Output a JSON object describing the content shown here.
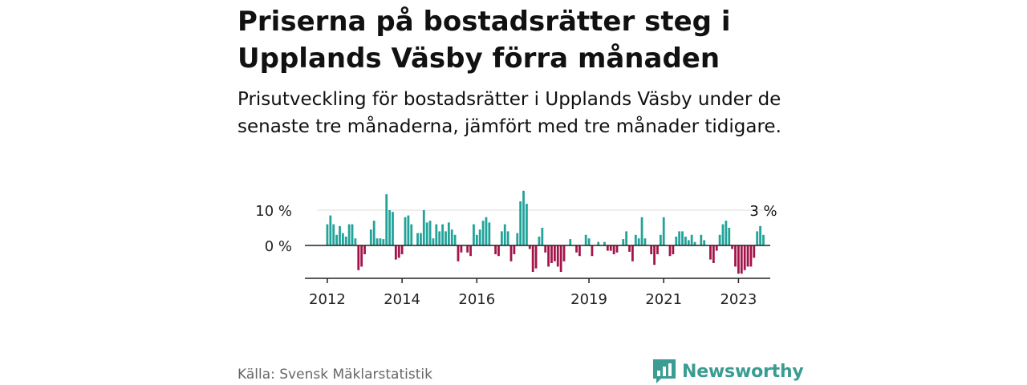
{
  "title": "Priserna på bostadsrätter steg i Upplands Väsby förra månaden",
  "subtitle": "Prisutveckling för bostadsrätter i Upplands Väsby under de senaste tre månaderna, jämfört med tre månader tidigare.",
  "source": "Källa: Svensk Mäklarstatistik",
  "brand": {
    "name": "Newsworthy",
    "color": "#3a9c92"
  },
  "colors": {
    "positive": "#22a39a",
    "negative": "#a3154a"
  },
  "chart_data": {
    "type": "bar",
    "title": "",
    "xlabel": "",
    "ylabel": "",
    "x_start": 2012.0,
    "x_step": 0.0833333,
    "x_range": [
      2011.4,
      2023.85
    ],
    "ylim": [
      -9,
      16
    ],
    "yticks": [
      0,
      10
    ],
    "ytick_labels": [
      "0 %",
      "10 %"
    ],
    "xticks": [
      2012,
      2014,
      2016,
      2019,
      2021,
      2023
    ],
    "xtick_labels": [
      "2012",
      "2014",
      "2016",
      "2019",
      "2021",
      "2023"
    ],
    "last_value_label": "3 %",
    "values": [
      6,
      8.5,
      6,
      3,
      5.5,
      3.5,
      2.5,
      6,
      6,
      2,
      -7,
      -6,
      -2.5,
      0,
      4.5,
      7,
      2,
      2,
      1.8,
      14.5,
      10,
      9.5,
      -4,
      -3.5,
      -2.5,
      8,
      8.5,
      6,
      0,
      3.5,
      3.5,
      10,
      6.5,
      7,
      2,
      6,
      4,
      6,
      4,
      6.5,
      4.5,
      3,
      -4.5,
      -2,
      0,
      -2,
      -3,
      6,
      3,
      4.5,
      7,
      8,
      6.5,
      0,
      -2.5,
      -3,
      4,
      6,
      4,
      -4.5,
      -2.5,
      3.5,
      12.5,
      15.5,
      11.8,
      -1,
      -7.5,
      -6.5,
      2.5,
      5,
      -2,
      -6,
      -5,
      -4.5,
      -6,
      -7.5,
      -4.5,
      0,
      1.8,
      0,
      -2,
      -3,
      0,
      3,
      2,
      -3,
      0,
      1,
      0,
      1,
      -1.5,
      -1.5,
      -2.5,
      -2,
      0,
      1.8,
      4,
      -1.8,
      -4.5,
      3,
      2,
      8,
      2,
      0,
      -2.5,
      -5.5,
      -2.5,
      3,
      8,
      0,
      -3,
      -2.5,
      2.5,
      4,
      4,
      2.5,
      1.5,
      3,
      1,
      0,
      3,
      1.5,
      0,
      -4,
      -5,
      -1.5,
      3,
      6,
      7,
      5,
      -1,
      -6,
      -8,
      -8,
      -7,
      -6,
      -6,
      -3.5,
      4,
      5.5,
      3
    ]
  }
}
